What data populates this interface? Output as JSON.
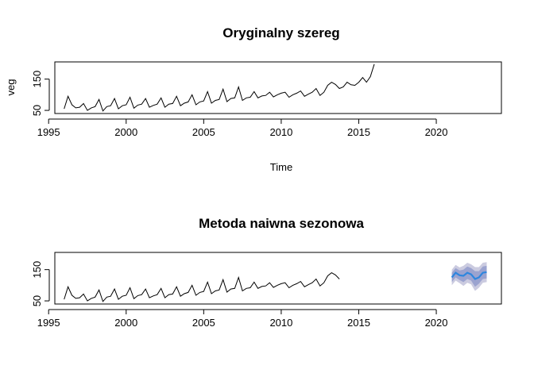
{
  "chart_data": [
    {
      "type": "line",
      "title": "Oryginalny szereg",
      "xlabel": "Time",
      "ylabel": "veg",
      "xlim": [
        1995.4,
        2024.2
      ],
      "ylim": [
        40,
        205
      ],
      "x_ticks": [
        1995,
        2000,
        2005,
        2010,
        2015,
        2020
      ],
      "x_tick_labels": [
        "1995",
        "2000",
        "2005",
        "2010",
        "2015",
        "2020"
      ],
      "y_ticks": [
        50,
        150
      ],
      "y_tick_labels": [
        "50",
        "150"
      ],
      "series": [
        {
          "color": "#000000",
          "x_start": 1996.0,
          "x_step": 0.25,
          "values": [
            55,
            95,
            68,
            58,
            60,
            72,
            50,
            58,
            62,
            85,
            48,
            62,
            65,
            88,
            55,
            65,
            68,
            92,
            57,
            67,
            70,
            88,
            60,
            66,
            70,
            90,
            60,
            70,
            72,
            95,
            65,
            73,
            77,
            100,
            68,
            77,
            80,
            110,
            73,
            82,
            85,
            118,
            78,
            88,
            90,
            125,
            82,
            90,
            92,
            110,
            90,
            96,
            98,
            108,
            93,
            100,
            105,
            108,
            92,
            100,
            105,
            112,
            95,
            102,
            108,
            120,
            98,
            108,
            130,
            140,
            133,
            120,
            125,
            140,
            132,
            130,
            140,
            155,
            140,
            158,
            198
          ]
        }
      ]
    },
    {
      "type": "line",
      "title": "Metoda naiwna sezonowa",
      "xlabel": "",
      "ylabel": "",
      "xlim": [
        1995.4,
        2024.2
      ],
      "ylim": [
        40,
        205
      ],
      "x_ticks": [
        1995,
        2000,
        2005,
        2010,
        2015,
        2020
      ],
      "x_tick_labels": [
        "1995",
        "2000",
        "2005",
        "2010",
        "2015",
        "2020"
      ],
      "y_ticks": [
        50,
        150
      ],
      "y_tick_labels": [
        "50",
        "150"
      ],
      "series": [
        {
          "color": "#000000",
          "x_start": 1996.0,
          "x_step": 0.25,
          "values": [
            55,
            95,
            68,
            58,
            60,
            72,
            50,
            58,
            62,
            85,
            48,
            62,
            65,
            88,
            55,
            65,
            68,
            92,
            57,
            67,
            70,
            88,
            60,
            66,
            70,
            90,
            60,
            70,
            72,
            95,
            65,
            73,
            77,
            100,
            68,
            77,
            80,
            110,
            73,
            82,
            85,
            118,
            78,
            88,
            90,
            125,
            82,
            90,
            92,
            110,
            90,
            96,
            98,
            108,
            93,
            100,
            105,
            108,
            92,
            100,
            105,
            112,
            95,
            102,
            108,
            120,
            98,
            108,
            130,
            140,
            133,
            120
          ]
        }
      ],
      "forecast": {
        "color": "#2e86de",
        "band80_color": "#9ba3cf",
        "band95_color": "#cbcbe0",
        "x_start": 2021.0,
        "x_step": 0.25,
        "mean": [
          125,
          140,
          132,
          130,
          140,
          135,
          120,
          125,
          140,
          142
        ],
        "lo80": [
          110,
          125,
          117,
          110,
          120,
          115,
          95,
          105,
          120,
          122
        ],
        "hi80": [
          140,
          155,
          147,
          150,
          160,
          155,
          145,
          145,
          160,
          162
        ],
        "lo95": [
          100,
          115,
          107,
          98,
          108,
          103,
          82,
          92,
          108,
          110
        ],
        "hi95": [
          150,
          165,
          157,
          162,
          172,
          167,
          158,
          158,
          172,
          174
        ]
      }
    }
  ]
}
